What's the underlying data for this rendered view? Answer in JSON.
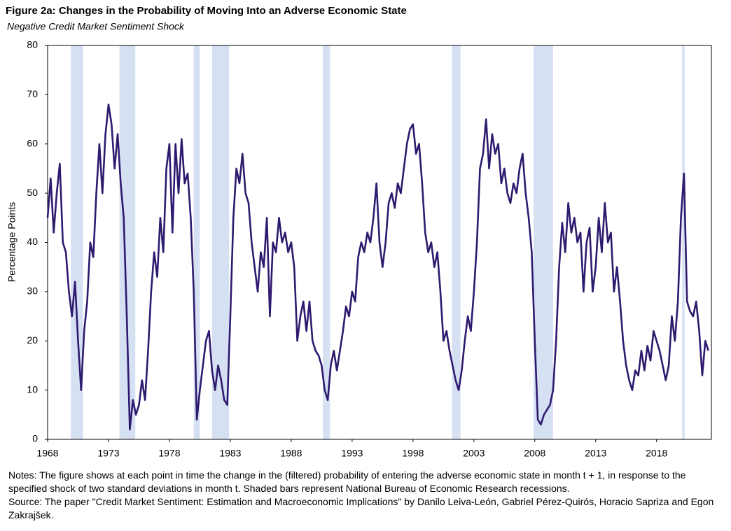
{
  "chart_data": {
    "type": "line",
    "title": "Figure 2a: Changes in the Probability of Moving Into an Adverse Economic State",
    "subtitle": "Negative Credit Market Sentiment Shock",
    "y_label": "Percentage Points",
    "color": "#2e1a6e",
    "recession_color": "#d6e0f3",
    "xlim": [
      1968,
      2022.5
    ],
    "xticks": [
      1968,
      1973,
      1978,
      1983,
      1988,
      1993,
      1998,
      2003,
      2008,
      2013,
      2018
    ],
    "ylim": [
      0,
      80
    ],
    "yticks": [
      0,
      10,
      20,
      30,
      40,
      50,
      60,
      70,
      80
    ],
    "recessions": [
      {
        "start": 1969.9,
        "end": 1970.9
      },
      {
        "start": 1973.9,
        "end": 1975.2
      },
      {
        "start": 1980.0,
        "end": 1980.5
      },
      {
        "start": 1981.5,
        "end": 1982.9
      },
      {
        "start": 1990.6,
        "end": 1991.2
      },
      {
        "start": 2001.2,
        "end": 2001.9
      },
      {
        "start": 2007.9,
        "end": 2009.5
      },
      {
        "start": 2020.1,
        "end": 2020.3
      }
    ],
    "x": [
      1968,
      1968.25,
      1968.5,
      1968.75,
      1969,
      1969.25,
      1969.5,
      1969.75,
      1970,
      1970.25,
      1970.5,
      1970.75,
      1971,
      1971.25,
      1971.5,
      1971.75,
      1972,
      1972.25,
      1972.5,
      1972.75,
      1973,
      1973.25,
      1973.5,
      1973.75,
      1974,
      1974.25,
      1974.5,
      1974.75,
      1975,
      1975.25,
      1975.5,
      1975.75,
      1976,
      1976.25,
      1976.5,
      1976.75,
      1977,
      1977.25,
      1977.5,
      1977.75,
      1978,
      1978.25,
      1978.5,
      1978.75,
      1979,
      1979.25,
      1979.5,
      1979.75,
      1980,
      1980.25,
      1980.5,
      1980.75,
      1981,
      1981.25,
      1981.5,
      1981.75,
      1982,
      1982.25,
      1982.5,
      1982.75,
      1983,
      1983.25,
      1983.5,
      1983.75,
      1984,
      1984.25,
      1984.5,
      1984.75,
      1985,
      1985.25,
      1985.5,
      1985.75,
      1986,
      1986.25,
      1986.5,
      1986.75,
      1987,
      1987.25,
      1987.5,
      1987.75,
      1988,
      1988.25,
      1988.5,
      1988.75,
      1989,
      1989.25,
      1989.5,
      1989.75,
      1990,
      1990.25,
      1990.5,
      1990.75,
      1991,
      1991.25,
      1991.5,
      1991.75,
      1992,
      1992.25,
      1992.5,
      1992.75,
      1993,
      1993.25,
      1993.5,
      1993.75,
      1994,
      1994.25,
      1994.5,
      1994.75,
      1995,
      1995.25,
      1995.5,
      1995.75,
      1996,
      1996.25,
      1996.5,
      1996.75,
      1997,
      1997.25,
      1997.5,
      1997.75,
      1998,
      1998.25,
      1998.5,
      1998.75,
      1999,
      1999.25,
      1999.5,
      1999.75,
      2000,
      2000.25,
      2000.5,
      2000.75,
      2001,
      2001.25,
      2001.5,
      2001.75,
      2002,
      2002.25,
      2002.5,
      2002.75,
      2003,
      2003.25,
      2003.5,
      2003.75,
      2004,
      2004.25,
      2004.5,
      2004.75,
      2005,
      2005.25,
      2005.5,
      2005.75,
      2006,
      2006.25,
      2006.5,
      2006.75,
      2007,
      2007.25,
      2007.5,
      2007.75,
      2008,
      2008.25,
      2008.5,
      2008.75,
      2009,
      2009.25,
      2009.5,
      2009.75,
      2010,
      2010.25,
      2010.5,
      2010.75,
      2011,
      2011.25,
      2011.5,
      2011.75,
      2012,
      2012.25,
      2012.5,
      2012.75,
      2013,
      2013.25,
      2013.5,
      2013.75,
      2014,
      2014.25,
      2014.5,
      2014.75,
      2015,
      2015.25,
      2015.5,
      2015.75,
      2016,
      2016.25,
      2016.5,
      2016.75,
      2017,
      2017.25,
      2017.5,
      2017.75,
      2018,
      2018.25,
      2018.5,
      2018.75,
      2019,
      2019.25,
      2019.5,
      2019.75,
      2020,
      2020.25,
      2020.5,
      2020.75,
      2021,
      2021.25,
      2021.5,
      2021.75,
      2022,
      2022.25
    ],
    "values": [
      45,
      53,
      42,
      50,
      56,
      40,
      38,
      30,
      25,
      32,
      20,
      10,
      22,
      28,
      40,
      37,
      50,
      60,
      50,
      62,
      68,
      64,
      55,
      62,
      52,
      45,
      25,
      2,
      8,
      5,
      7,
      12,
      8,
      18,
      30,
      38,
      33,
      45,
      38,
      55,
      60,
      42,
      60,
      50,
      61,
      52,
      54,
      45,
      30,
      4,
      10,
      15,
      20,
      22,
      14,
      10,
      15,
      12,
      8,
      7,
      25,
      45,
      55,
      52,
      58,
      50,
      48,
      40,
      35,
      30,
      38,
      35,
      45,
      25,
      40,
      38,
      45,
      40,
      42,
      38,
      40,
      35,
      20,
      25,
      28,
      22,
      28,
      20,
      18,
      17,
      15,
      10,
      8,
      15,
      18,
      14,
      18,
      22,
      27,
      25,
      30,
      28,
      37,
      40,
      38,
      42,
      40,
      45,
      52,
      40,
      35,
      40,
      48,
      50,
      47,
      52,
      50,
      55,
      60,
      63,
      64,
      58,
      60,
      52,
      42,
      38,
      40,
      35,
      38,
      30,
      20,
      22,
      18,
      15,
      12,
      10,
      14,
      20,
      25,
      22,
      30,
      40,
      55,
      58,
      65,
      55,
      62,
      58,
      60,
      52,
      55,
      50,
      48,
      52,
      50,
      55,
      58,
      50,
      45,
      38,
      20,
      4,
      3,
      5,
      6,
      7,
      10,
      20,
      35,
      44,
      38,
      48,
      42,
      45,
      40,
      42,
      30,
      40,
      43,
      30,
      35,
      45,
      38,
      48,
      40,
      42,
      30,
      35,
      28,
      20,
      15,
      12,
      10,
      14,
      13,
      18,
      14,
      19,
      16,
      22,
      20,
      18,
      15,
      12,
      15,
      25,
      20,
      28,
      45,
      54,
      28,
      26,
      25,
      28,
      22,
      13,
      20,
      18
    ],
    "notes": "Notes: The figure shows at each point in time the change in the (filtered) probability of entering the adverse economic state in month t + 1,  in response to the specified shock of two standard deviations in month t. Shaded  bars represent National Bureau of Economic Research recessions.",
    "source": "Source: The paper \"Credit Market Sentiment: Estimation and Macroeconomic Implications\" by Danilo Leiva-León, Gabriel Pérez-Quirós, Horacio Sapriza and Egon Zakrajšek."
  }
}
